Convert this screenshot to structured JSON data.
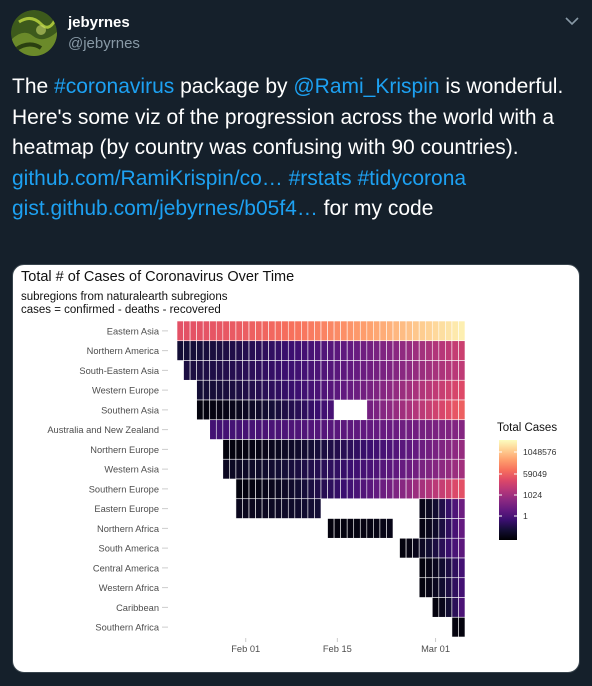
{
  "tweet": {
    "display_name": "jebyrnes",
    "handle": "@jebyrnes",
    "body": {
      "t1": "The ",
      "hashtag_coronavirus": "#coronavirus",
      "t2": " package by ",
      "mention_rami": "@Rami_Krispin",
      "t3": " is wonderful. Here's some viz of the progression across the world with a heatmap (by country was confusing with 90 countries). ",
      "link_github": "github.com/RamiKrispin/co…",
      "t4": " ",
      "hashtag_rstats": "#rstats",
      "t5": " ",
      "hashtag_tidycorona": "#tidycorona",
      "t6": " ",
      "link_gist": "gist.github.com/jebyrnes/b05f4…",
      "t7": " for my code"
    }
  },
  "colors": {
    "background": "#15202b",
    "link": "#1da1f2",
    "text": "#ffffff",
    "secondary": "#8899a6"
  },
  "icons": {
    "more": "chevron-down-icon"
  },
  "chart_data": {
    "type": "heatmap",
    "title": "Total # of Cases of Coronavirus Over Time",
    "subtitle": [
      "subregions from naturalearth subregions",
      "cases = confirmed - deaths - recovered"
    ],
    "x_ticks": [
      "Feb 01",
      "Feb 15",
      "Mar 01"
    ],
    "x_tick_days": [
      10,
      24,
      39
    ],
    "x_range_days": [
      0,
      43
    ],
    "legend": {
      "title": "Total Cases",
      "labels": [
        "1048576",
        "59049",
        "1024",
        "1"
      ],
      "placement": "right",
      "scale": "log"
    },
    "colormap": "magma",
    "rows": [
      {
        "name": "Eastern Asia",
        "start": 0,
        "end": 43,
        "first_level": 0.62,
        "last_level": 0.97
      },
      {
        "name": "Northern America",
        "start": 0,
        "end": 43,
        "first_level": 0.1,
        "last_level": 0.55
      },
      {
        "name": "South-Eastern Asia",
        "start": 1,
        "end": 43,
        "first_level": 0.12,
        "last_level": 0.52
      },
      {
        "name": "Western Europe",
        "start": 3,
        "end": 43,
        "first_level": 0.1,
        "last_level": 0.6
      },
      {
        "name": "Southern Asia",
        "start": 3,
        "end": 43,
        "first_level": 0.02,
        "last_level": 0.66,
        "gap": [
          24,
          28
        ]
      },
      {
        "name": "Australia and New Zealand",
        "start": 5,
        "end": 43,
        "first_level": 0.22,
        "last_level": 0.38
      },
      {
        "name": "Northern Europe",
        "start": 7,
        "end": 43,
        "first_level": 0.02,
        "last_level": 0.42
      },
      {
        "name": "Western Asia",
        "start": 7,
        "end": 43,
        "first_level": 0.06,
        "last_level": 0.45
      },
      {
        "name": "Southern Europe",
        "start": 9,
        "end": 43,
        "first_level": 0.02,
        "last_level": 0.62
      },
      {
        "name": "Eastern Europe",
        "start": 9,
        "end": 21,
        "first_level": 0.05,
        "last_level": 0.1,
        "second_start": 37,
        "second_end": 43,
        "second_first": 0.04,
        "second_last": 0.32
      },
      {
        "name": "Northern Africa",
        "start": 23,
        "end": 32,
        "first_level": 0.02,
        "last_level": 0.04,
        "second_start": 37,
        "second_end": 43,
        "second_first": 0.03,
        "second_last": 0.3
      },
      {
        "name": "South America",
        "start": 34,
        "end": 43,
        "first_level": 0.02,
        "last_level": 0.28
      },
      {
        "name": "Central America",
        "start": 37,
        "end": 43,
        "first_level": 0.02,
        "last_level": 0.22
      },
      {
        "name": "Western Africa",
        "start": 37,
        "end": 43,
        "first_level": 0.02,
        "last_level": 0.22
      },
      {
        "name": "Caribbean",
        "start": 39,
        "end": 43,
        "first_level": 0.02,
        "last_level": 0.24
      },
      {
        "name": "Southern Africa",
        "start": 42,
        "end": 43,
        "first_level": 0.02,
        "last_level": 0.02
      }
    ]
  }
}
